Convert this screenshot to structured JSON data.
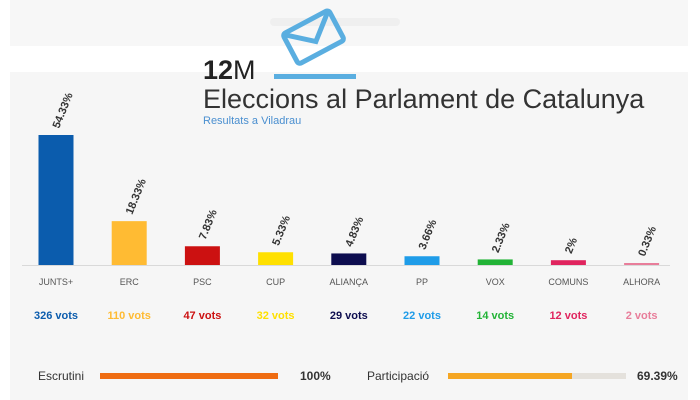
{
  "header": {
    "title_num": "12",
    "title_suffix": "M",
    "title": "Eleccions al Parlament de Catalunya",
    "subtitle": "Resultats a Viladrau",
    "logo_icon": "ballot-envelope-icon",
    "logo_color": "#5aaee0"
  },
  "chart_data": {
    "type": "bar",
    "categories": [
      "JUNTS+",
      "ERC",
      "PSC",
      "CUP",
      "ALIANÇA",
      "PP",
      "VOX",
      "COMUNS",
      "ALHORA"
    ],
    "values": [
      54.33,
      18.33,
      7.83,
      5.33,
      4.83,
      3.66,
      2.33,
      2,
      0.33
    ],
    "value_labels": [
      "54.33%",
      "18.33%",
      "7.83%",
      "5.33%",
      "4.83%",
      "3.66%",
      "2.33%",
      "2%",
      "0.33%"
    ],
    "votes": [
      "326 vots",
      "110 vots",
      "47 vots",
      "32 vots",
      "29 vots",
      "22 vots",
      "14 vots",
      "12 vots",
      "2 vots"
    ],
    "colors": [
      "#0b5cad",
      "#ffbb33",
      "#cc1111",
      "#ffe000",
      "#0d0d4f",
      "#1f9ce8",
      "#22b336",
      "#e0245e",
      "#e87d9a"
    ],
    "ylim": [
      0,
      54.33
    ],
    "grid": false,
    "title": "",
    "xlabel": "",
    "ylabel": ""
  },
  "stats": {
    "escrutini_label": "Escrutini",
    "escrutini_value": "100%",
    "escrutini_fraction": 1.0,
    "escrutini_color": "#ef6c12",
    "participacio_label": "Participació",
    "participacio_value": "69.39%",
    "participacio_fraction": 0.6939,
    "participacio_color": "#f5a623"
  }
}
